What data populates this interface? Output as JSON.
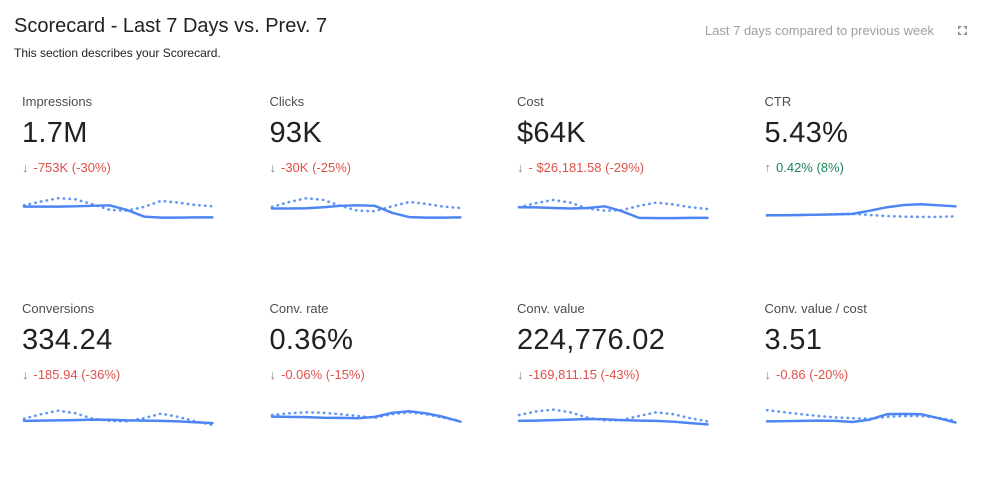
{
  "header": {
    "title": "Scorecard - Last 7 Days vs. Prev. 7",
    "subtitle": "This section describes your Scorecard.",
    "compare_label": "Last 7 days compared to previous week",
    "fullscreen_icon": "fullscreen-expand-icon"
  },
  "colors": {
    "line_current": "#4e85f4",
    "line_previous_dotted": "#5f95f5",
    "negative": "#e0514a",
    "positive": "#1a8757",
    "arrow_gray": "#80868b",
    "label_gray": "#4d4d4d",
    "compare_gray": "#9aa0a6",
    "title_dark": "#202124"
  },
  "chart_data": [
    {
      "type": "line",
      "title": "Impressions",
      "value": "1.7M",
      "arrow": "↓",
      "delta": "-753K (-30%)",
      "trend": "negative",
      "legend": [
        "current (solid)",
        "previous period (dotted)"
      ],
      "ylim": [
        0,
        100
      ],
      "series": [
        {
          "name": "current",
          "values": [
            57,
            57,
            57,
            58,
            60,
            62,
            45,
            20,
            16,
            16,
            17,
            17
          ]
        },
        {
          "name": "previous",
          "values": [
            62,
            76,
            88,
            84,
            66,
            45,
            42,
            56,
            78,
            72,
            63,
            58
          ]
        }
      ]
    },
    {
      "type": "line",
      "title": "Clicks",
      "value": "93K",
      "arrow": "↓",
      "delta": "-30K (-25%)",
      "trend": "negative",
      "legend": [
        "current (solid)",
        "previous period (dotted)"
      ],
      "ylim": [
        0,
        100
      ],
      "series": [
        {
          "name": "current",
          "values": [
            50,
            50,
            51,
            55,
            60,
            62,
            60,
            34,
            18,
            16,
            16,
            17
          ]
        },
        {
          "name": "previous",
          "values": [
            56,
            74,
            88,
            82,
            60,
            42,
            40,
            58,
            74,
            67,
            57,
            52
          ]
        }
      ]
    },
    {
      "type": "line",
      "title": "Cost",
      "value": "$64K",
      "arrow": "↓",
      "delta": "- $26,181.58 (-29%)",
      "trend": "negative",
      "legend": [
        "current (solid)",
        "previous period (dotted)"
      ],
      "ylim": [
        0,
        100
      ],
      "series": [
        {
          "name": "current",
          "values": [
            55,
            54,
            52,
            50,
            52,
            58,
            40,
            15,
            14,
            14,
            15,
            15
          ]
        },
        {
          "name": "previous",
          "values": [
            55,
            70,
            82,
            72,
            50,
            42,
            44,
            60,
            72,
            65,
            55,
            48
          ]
        }
      ]
    },
    {
      "type": "line",
      "title": "CTR",
      "value": "5.43%",
      "arrow": "↑",
      "delta": "0.42% (8%)",
      "trend": "positive",
      "legend": [
        "current (solid)",
        "previous period (dotted)"
      ],
      "ylim": [
        0,
        100
      ],
      "series": [
        {
          "name": "current",
          "values": [
            25,
            25,
            26,
            27,
            28,
            30,
            42,
            55,
            63,
            66,
            62,
            58
          ]
        },
        {
          "name": "previous",
          "values": [
            24,
            25,
            26,
            27,
            29,
            30,
            26,
            22,
            20,
            19,
            19,
            21
          ]
        }
      ]
    },
    {
      "type": "line",
      "title": "Conversions",
      "value": "334.24",
      "arrow": "↓",
      "delta": "-185.94 (-36%)",
      "trend": "negative",
      "legend": [
        "current (solid)",
        "previous period (dotted)"
      ],
      "ylim": [
        0,
        100
      ],
      "series": [
        {
          "name": "current",
          "values": [
            30,
            31,
            32,
            33,
            35,
            34,
            32,
            31,
            30,
            28,
            25,
            22
          ]
        },
        {
          "name": "previous",
          "values": [
            38,
            55,
            68,
            58,
            38,
            30,
            29,
            40,
            57,
            45,
            28,
            15
          ]
        }
      ]
    },
    {
      "type": "line",
      "title": "Conv. rate",
      "value": "0.36%",
      "arrow": "↓",
      "delta": "-0.06% (-15%)",
      "trend": "negative",
      "legend": [
        "current (solid)",
        "previous period (dotted)"
      ],
      "ylim": [
        0,
        100
      ],
      "series": [
        {
          "name": "current",
          "values": [
            46,
            45,
            44,
            42,
            41,
            40,
            45,
            60,
            66,
            58,
            45,
            27
          ]
        },
        {
          "name": "previous",
          "values": [
            52,
            58,
            62,
            60,
            55,
            48,
            42,
            55,
            62,
            55,
            42,
            30
          ]
        }
      ]
    },
    {
      "type": "line",
      "title": "Conv. value",
      "value": "224,776.02",
      "arrow": "↓",
      "delta": "-169,811.15 (-43%)",
      "trend": "negative",
      "legend": [
        "current (solid)",
        "previous period (dotted)"
      ],
      "ylim": [
        0,
        100
      ],
      "series": [
        {
          "name": "current",
          "values": [
            30,
            31,
            33,
            35,
            37,
            36,
            33,
            31,
            30,
            27,
            22,
            17
          ]
        },
        {
          "name": "previous",
          "values": [
            52,
            65,
            72,
            62,
            42,
            32,
            33,
            48,
            62,
            55,
            40,
            28
          ]
        }
      ]
    },
    {
      "type": "line",
      "title": "Conv. value / cost",
      "value": "3.51",
      "arrow": "↓",
      "delta": "-0.86 (-20%)",
      "trend": "negative",
      "legend": [
        "current (solid)",
        "previous period (dotted)"
      ],
      "ylim": [
        0,
        100
      ],
      "series": [
        {
          "name": "current",
          "values": [
            28,
            29,
            30,
            31,
            30,
            26,
            35,
            55,
            56,
            55,
            40,
            24
          ]
        },
        {
          "name": "previous",
          "values": [
            70,
            62,
            55,
            48,
            43,
            40,
            38,
            45,
            48,
            48,
            42,
            30
          ]
        }
      ]
    }
  ]
}
